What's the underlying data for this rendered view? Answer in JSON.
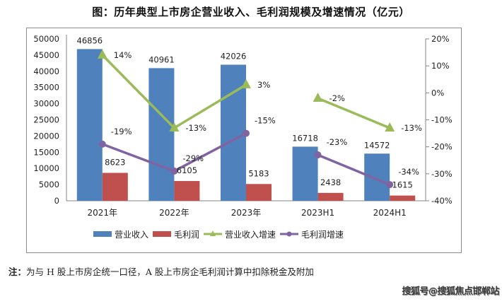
{
  "title": "图：历年典型上市房企营业收入、毛利润规模及增速情况（亿元）",
  "note_label": "注：",
  "note_text": "为与 H 股上市房企统一口径，A 股上市房企毛利润计算中扣除税金及附加",
  "watermark": "搜狐号@搜狐焦点邯郸站",
  "colors": {
    "revenue": "#4f81bd",
    "gross_profit": "#c0504d",
    "revenue_growth": "#9bbb59",
    "profit_growth": "#8064a2"
  },
  "chart_data": {
    "type": "bar",
    "title": "图：历年典型上市房企营业收入、毛利润规模及增速情况（亿元）",
    "categories": [
      "2021年",
      "2022年",
      "2023年",
      "2023H1",
      "2024H1"
    ],
    "series": [
      {
        "name": "营业收入",
        "type": "bar",
        "axis": "left",
        "values": [
          46856,
          40961,
          42026,
          16718,
          14572
        ],
        "labels": [
          "46856",
          "40961",
          "42026",
          "16718",
          "14572"
        ]
      },
      {
        "name": "毛利润",
        "type": "bar",
        "axis": "left",
        "values": [
          8623,
          6105,
          5183,
          2438,
          1615
        ],
        "labels": [
          "8623",
          "6105",
          "5183",
          "2438",
          "1615"
        ]
      },
      {
        "name": "营业收入增速",
        "type": "line",
        "axis": "right",
        "marker": "triangle",
        "values": [
          14,
          -13,
          3,
          -2,
          -13
        ],
        "labels": [
          "14%",
          "-13%",
          "3%",
          "-2%",
          "-13%"
        ],
        "segments": [
          [
            0,
            1,
            2
          ],
          [
            3,
            4
          ]
        ]
      },
      {
        "name": "毛利润增速",
        "type": "line",
        "axis": "right",
        "marker": "circle",
        "values": [
          -19,
          -29,
          -15,
          -23,
          -34
        ],
        "labels": [
          "-19%",
          "-29%",
          "-15%",
          "-23%",
          "-34%"
        ],
        "segments": [
          [
            0,
            1,
            2
          ],
          [
            3,
            4
          ]
        ]
      }
    ],
    "y_left": {
      "range": [
        0,
        50000
      ],
      "ticks": [
        "0",
        "5000",
        "10000",
        "15000",
        "20000",
        "25000",
        "30000",
        "35000",
        "40000",
        "45000",
        "50000"
      ]
    },
    "y_right": {
      "range": [
        -40,
        20
      ],
      "ticks": [
        "-40%",
        "-30%",
        "-20%",
        "-10%",
        "0%",
        "10%",
        "20%"
      ]
    },
    "grid": false,
    "legend": {
      "position": "bottom",
      "entries": [
        "营业收入",
        "毛利润",
        "营业收入增速",
        "毛利润增速"
      ]
    }
  }
}
